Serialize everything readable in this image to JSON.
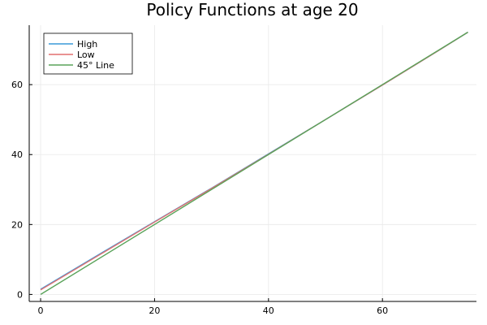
{
  "chart_data": {
    "type": "line",
    "title": "Policy Functions at age 20",
    "xlabel": "",
    "ylabel": "",
    "xlim": [
      -2,
      76.5
    ],
    "ylim": [
      -2,
      77
    ],
    "xticks": [
      0,
      20,
      40,
      60
    ],
    "yticks": [
      0,
      20,
      40,
      60
    ],
    "grid": true,
    "legend_position": "top-left",
    "series": [
      {
        "name": "High",
        "color": "#3a9ad9",
        "x": [
          0,
          10,
          20,
          30,
          40,
          50,
          60,
          70,
          75
        ],
        "y": [
          1.5,
          11.2,
          20.8,
          30.4,
          40.2,
          50.0,
          59.9,
          69.9,
          75
        ]
      },
      {
        "name": "Low",
        "color": "#e26f6f",
        "x": [
          0,
          10,
          20,
          30,
          40,
          50,
          60,
          70,
          75
        ],
        "y": [
          1.3,
          11.0,
          20.7,
          30.3,
          40.1,
          50.0,
          59.9,
          69.9,
          75
        ]
      },
      {
        "name": "45° Line",
        "color": "#5aa35a",
        "x": [
          0,
          75
        ],
        "y": [
          0,
          75
        ]
      }
    ]
  }
}
